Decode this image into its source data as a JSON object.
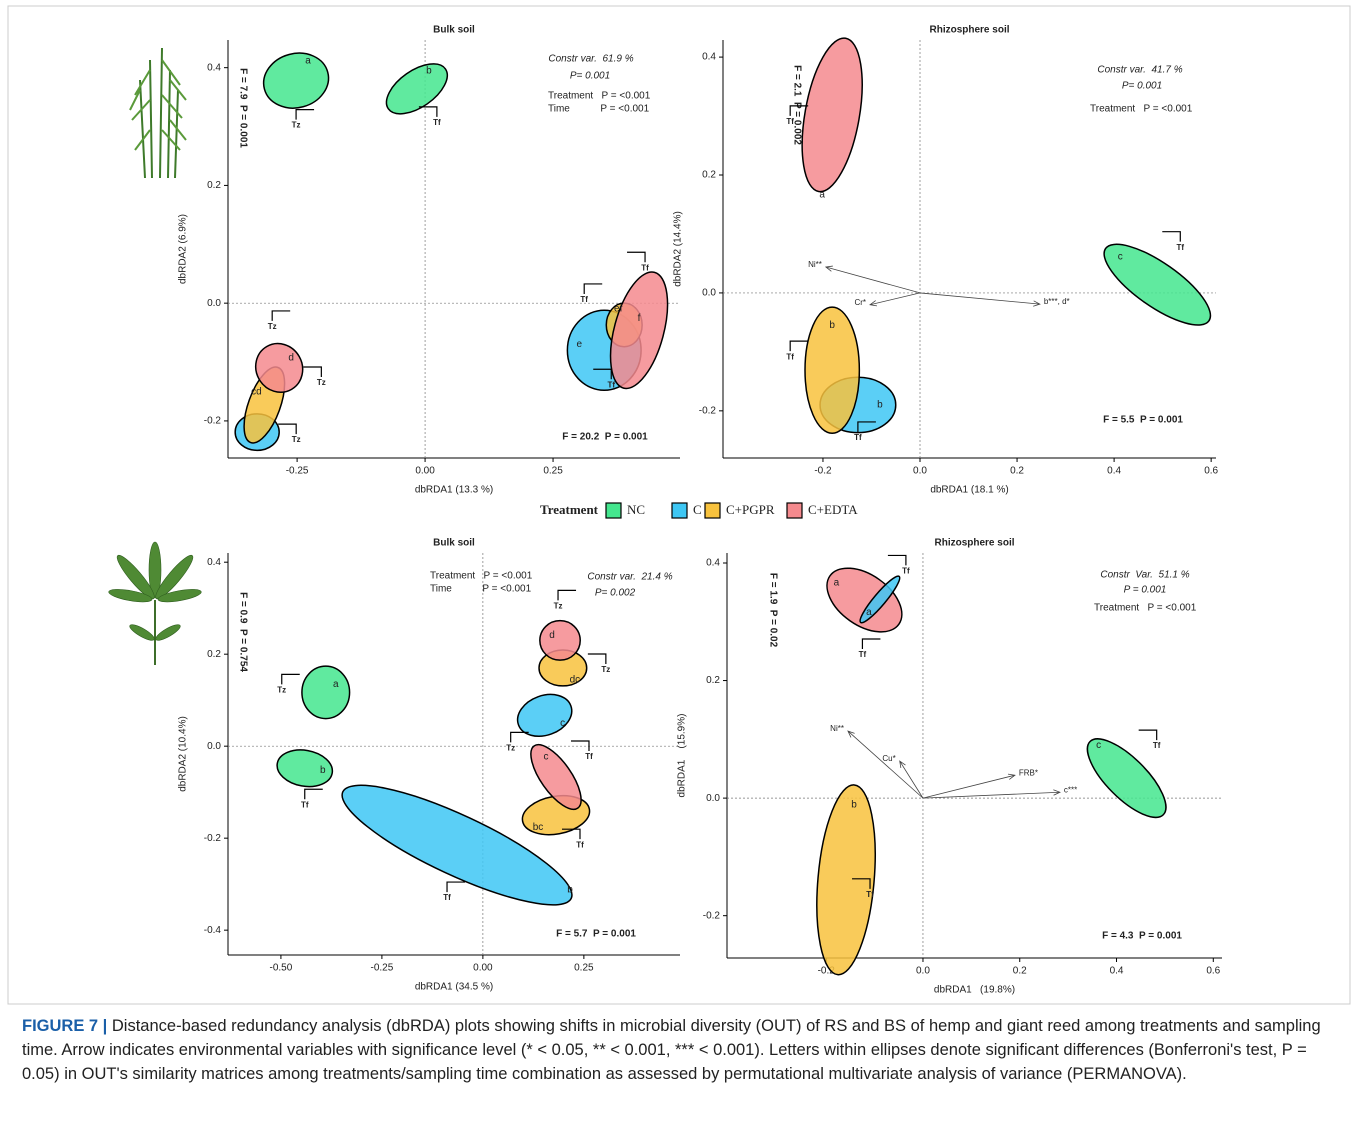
{
  "chart_data": [
    {
      "type": "ordination",
      "title": "Bulk soil",
      "xlabel": "dbRDA1 (13.3 %)",
      "ylabel": "dbRDA2 (6.9%)",
      "xlim": [
        -0.385,
        0.498
      ],
      "ylim": [
        -0.263,
        0.447
      ],
      "xticks": [
        -0.25,
        {
          "value": 0,
          "label": "0.00"
        },
        0.25
      ],
      "yticks": [
        -0.2,
        {
          "value": 0,
          "label": "0.0"
        },
        0.2,
        0.4
      ],
      "constr": "Constr var.  61.9 %",
      "constr_p": "P= 0.001",
      "tests": [
        "Treatment   P = <0.001",
        "Time           P = <0.001"
      ],
      "f_stat": "F = 20.2  P = 0.001",
      "f_side": "F = 7.9  P = 0.001",
      "ellipses": [
        {
          "group": "NC",
          "letter": "a",
          "time": "Tz",
          "x": -0.252,
          "y": 0.378,
          "rx": 0.064,
          "ry": 0.046,
          "tilt": 15
        },
        {
          "group": "NC",
          "letter": "b",
          "time": "Tf",
          "x": -0.016,
          "y": 0.364,
          "rx": 0.068,
          "ry": 0.031,
          "tilt": 35
        },
        {
          "group": "C",
          "letter": null,
          "time": "Tz",
          "x": -0.328,
          "y": -0.219,
          "rx": 0.043,
          "ry": 0.031,
          "tilt": 0
        },
        {
          "group": "C+PGPR",
          "letter": "cd",
          "time": "Tz",
          "x": -0.314,
          "y": -0.173,
          "rx": 0.078,
          "ry": 0.027,
          "tilt": 70
        },
        {
          "group": "C+EDTA",
          "letter": "d",
          "time": "Tz",
          "x": -0.285,
          "y": -0.11,
          "rx": 0.045,
          "ry": 0.042,
          "tilt": 30
        },
        {
          "group": "C",
          "letter": "e",
          "time": "Tf",
          "x": 0.35,
          "y": -0.08,
          "rx": 0.072,
          "ry": 0.068,
          "tilt": 0
        },
        {
          "group": "C+PGPR",
          "letter": "ef",
          "time": "Tf",
          "x": 0.389,
          "y": -0.037,
          "rx": 0.035,
          "ry": 0.037,
          "tilt": 0
        },
        {
          "group": "C+EDTA",
          "letter": "f",
          "time": "Tf",
          "x": 0.418,
          "y": -0.046,
          "rx": 0.117,
          "ry": 0.042,
          "tilt": 75
        }
      ],
      "arrows": []
    },
    {
      "type": "ordination",
      "title": "Rhizosphere soil",
      "xlabel": "dbRDA1 (18.1 %)",
      "ylabel": "dbRDA2 (14.4%)",
      "xlim": [
        -0.406,
        0.61
      ],
      "ylim": [
        -0.28,
        0.429
      ],
      "xticks": [
        -0.2,
        {
          "value": 0,
          "label": "0.0"
        },
        0.2,
        0.4,
        0.6
      ],
      "yticks": [
        -0.2,
        {
          "value": 0,
          "label": "0.0"
        },
        0.2,
        0.4
      ],
      "constr": "Constr var.  41.7 %",
      "constr_p": "P= 0.001",
      "tests": [
        "Treatment   P = <0.001"
      ],
      "f_stat": "F = 5.5  P = 0.001",
      "f_side": "F = 2.1  P = 0.002",
      "ellipses": [
        {
          "group": "C+EDTA",
          "letter": "a",
          "time": "Tf",
          "x": -0.181,
          "y": 0.302,
          "rx": 0.056,
          "ry": 0.132,
          "tilt": -10
        },
        {
          "group": "NC",
          "letter": "c",
          "time": "Tf",
          "x": 0.489,
          "y": 0.014,
          "rx": 0.13,
          "ry": 0.037,
          "tilt": -35
        },
        {
          "group": "C",
          "letter": "b",
          "time": "Tf",
          "x": -0.128,
          "y": -0.19,
          "rx": 0.078,
          "ry": 0.047,
          "tilt": 0
        },
        {
          "group": "C+PGPR",
          "letter": "b",
          "time": "Tf",
          "x": -0.181,
          "y": -0.131,
          "rx": 0.056,
          "ry": 0.107,
          "tilt": 0
        }
      ],
      "arrows": [
        {
          "label": "Ni**",
          "x": -0.194,
          "y": 0.044
        },
        {
          "label": "Cr*",
          "x": -0.103,
          "y": -0.02
        },
        {
          "label": "b***, d*",
          "x": 0.247,
          "y": -0.019
        }
      ]
    },
    {
      "type": "ordination",
      "title": "Bulk soil",
      "xlabel": "dbRDA1 (34.5 %)",
      "ylabel": "dbRDA2 (10.4%)",
      "xlim": [
        -0.631,
        0.488
      ],
      "ylim": [
        -0.454,
        0.42
      ],
      "xticks": [
        {
          "value": -0.5,
          "label": "-0.50"
        },
        -0.25,
        {
          "value": 0,
          "label": "0.00"
        },
        0.25
      ],
      "yticks": [
        -0.4,
        -0.2,
        {
          "value": 0,
          "label": "0.0"
        },
        0.2,
        0.4
      ],
      "constr": "Constr var.  21.4 %",
      "constr_p": "P= 0.002",
      "tests": [
        "Treatment   P = <0.001",
        "Time           P = <0.001"
      ],
      "f_stat": "F = 5.7  P = 0.001",
      "f_side": "F = 0.9  P = 0.754",
      "ellipses": [
        {
          "group": "NC",
          "letter": "a",
          "time": "Tz",
          "x": -0.389,
          "y": 0.117,
          "rx": 0.059,
          "ry": 0.057,
          "tilt": 0
        },
        {
          "group": "NC",
          "letter": "b",
          "time": "Tf",
          "x": -0.441,
          "y": -0.048,
          "rx": 0.069,
          "ry": 0.039,
          "tilt": -10
        },
        {
          "group": "C",
          "letter": "b",
          "time": "Tf",
          "x": -0.064,
          "y": -0.215,
          "rx": 0.312,
          "ry": 0.065,
          "tilt": -25
        },
        {
          "group": "C",
          "letter": "c",
          "time": "Tz",
          "x": 0.153,
          "y": 0.067,
          "rx": 0.069,
          "ry": 0.043,
          "tilt": 20
        },
        {
          "group": "C+PGPR",
          "letter": "dc",
          "time": "Tz",
          "x": 0.198,
          "y": 0.17,
          "rx": 0.059,
          "ry": 0.039,
          "tilt": 0
        },
        {
          "group": "C+EDTA",
          "letter": "d",
          "time": "Tz",
          "x": 0.191,
          "y": 0.23,
          "rx": 0.05,
          "ry": 0.043,
          "tilt": 0
        },
        {
          "group": "C+PGPR",
          "letter": "bc",
          "time": "Tf",
          "x": 0.181,
          "y": -0.15,
          "rx": 0.084,
          "ry": 0.041,
          "tilt": 10
        },
        {
          "group": "C+EDTA",
          "letter": "c",
          "time": "Tf",
          "x": 0.181,
          "y": -0.067,
          "rx": 0.094,
          "ry": 0.033,
          "tilt": -55
        }
      ],
      "arrows": []
    },
    {
      "type": "ordination",
      "title": "Rhizosphere soil",
      "xlabel": "dbRDA1   (19.8%)",
      "ylabel": "dbRDA1    (15.9%)",
      "xlim": [
        -0.405,
        0.618
      ],
      "ylim": [
        -0.272,
        0.417
      ],
      "xticks": [
        -0.2,
        {
          "value": 0,
          "label": "0.0"
        },
        0.2,
        0.4,
        0.6
      ],
      "yticks": [
        -0.2,
        {
          "value": 0,
          "label": "0.0"
        },
        0.2,
        0.4
      ],
      "constr": "Constr  Var.  51.1 %",
      "constr_p": "P = 0.001",
      "tests": [
        "Treatment   P = <0.001"
      ],
      "f_stat": "F = 4.3  P = 0.001",
      "f_side": "F = 1.9  P = 0.02",
      "ellipses": [
        {
          "group": "C+EDTA",
          "letter": "a",
          "time": "Tf",
          "x": -0.121,
          "y": 0.337,
          "rx": 0.087,
          "ry": 0.043,
          "tilt": -35
        },
        {
          "group": "C",
          "letter": "a",
          "time": "Tf",
          "x": -0.089,
          "y": 0.338,
          "rx": 0.062,
          "ry": 0.01,
          "tilt": 50
        },
        {
          "group": "NC",
          "letter": "c",
          "time": "Tf",
          "x": 0.421,
          "y": 0.034,
          "rx": 0.107,
          "ry": 0.034,
          "tilt": -45
        },
        {
          "group": "C+PGPR",
          "letter": "b",
          "time": "Tf",
          "x": -0.159,
          "y": -0.139,
          "rx": 0.058,
          "ry": 0.162,
          "tilt": -5
        }
      ],
      "arrows": [
        {
          "label": "Ni**",
          "x": -0.155,
          "y": 0.114
        },
        {
          "label": "Cu*",
          "x": -0.048,
          "y": 0.063
        },
        {
          "label": "FRB*",
          "x": 0.19,
          "y": 0.039
        },
        {
          "label": "c***",
          "x": 0.283,
          "y": 0.01
        }
      ]
    }
  ],
  "legend": {
    "title": "Treatment",
    "items": [
      {
        "name": "NC",
        "color": "#44e68e"
      },
      {
        "name": "C",
        "color": "#3ec7f4"
      },
      {
        "name": "C+PGPR",
        "color": "#f8c23d"
      },
      {
        "name": "C+EDTA",
        "color": "#f58a8e"
      }
    ]
  },
  "caption": {
    "label": "FIGURE 7 |",
    "text": "Distance-based redundancy analysis (dbRDA) plots showing shifts in microbial diversity (OUT) of RS and BS of hemp and giant reed among treatments and sampling time. Arrow indicates environmental variables with significance level (* < 0.05, ** < 0.001, *** < 0.001). Letters within ellipses denote significant differences (Bonferroni's test, P = 0.05) in OUT's similarity matrices among treatments/sampling time combination as assessed by permutational multivariate analysis of variance (PERMANOVA)."
  }
}
